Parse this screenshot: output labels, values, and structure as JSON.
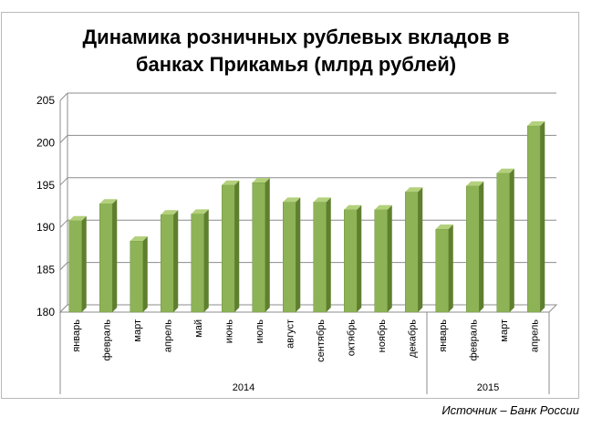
{
  "chart_data": {
    "type": "bar",
    "title_lines": [
      "Динамика розничных рублевых вкладов в",
      "банках Прикамья (млрд рублей)"
    ],
    "categories": [
      "январь",
      "февраль",
      "март",
      "апрель",
      "май",
      "июнь",
      "июль",
      "август",
      "сентябрь",
      "октябрь",
      "ноябрь",
      "декабрь",
      "январь",
      "февраль",
      "март",
      "апрель"
    ],
    "values": [
      190.8,
      192.8,
      188.4,
      191.5,
      191.6,
      195.0,
      195.3,
      193.0,
      193.0,
      192.1,
      192.1,
      194.2,
      189.8,
      194.9,
      196.4,
      202.0
    ],
    "groups": [
      {
        "label": "2014",
        "count": 12
      },
      {
        "label": "2015",
        "count": 4
      }
    ],
    "ylim": [
      180,
      205
    ],
    "yticks": [
      "180",
      "185",
      "190",
      "195",
      "200",
      "205"
    ],
    "xlabel": "",
    "ylabel": "",
    "grid": true,
    "bar_color": "#8db356",
    "bar_side_color": "#5f7f2f",
    "bar_top_color": "#b3d07c"
  },
  "source_note": "Источник – Банк России"
}
